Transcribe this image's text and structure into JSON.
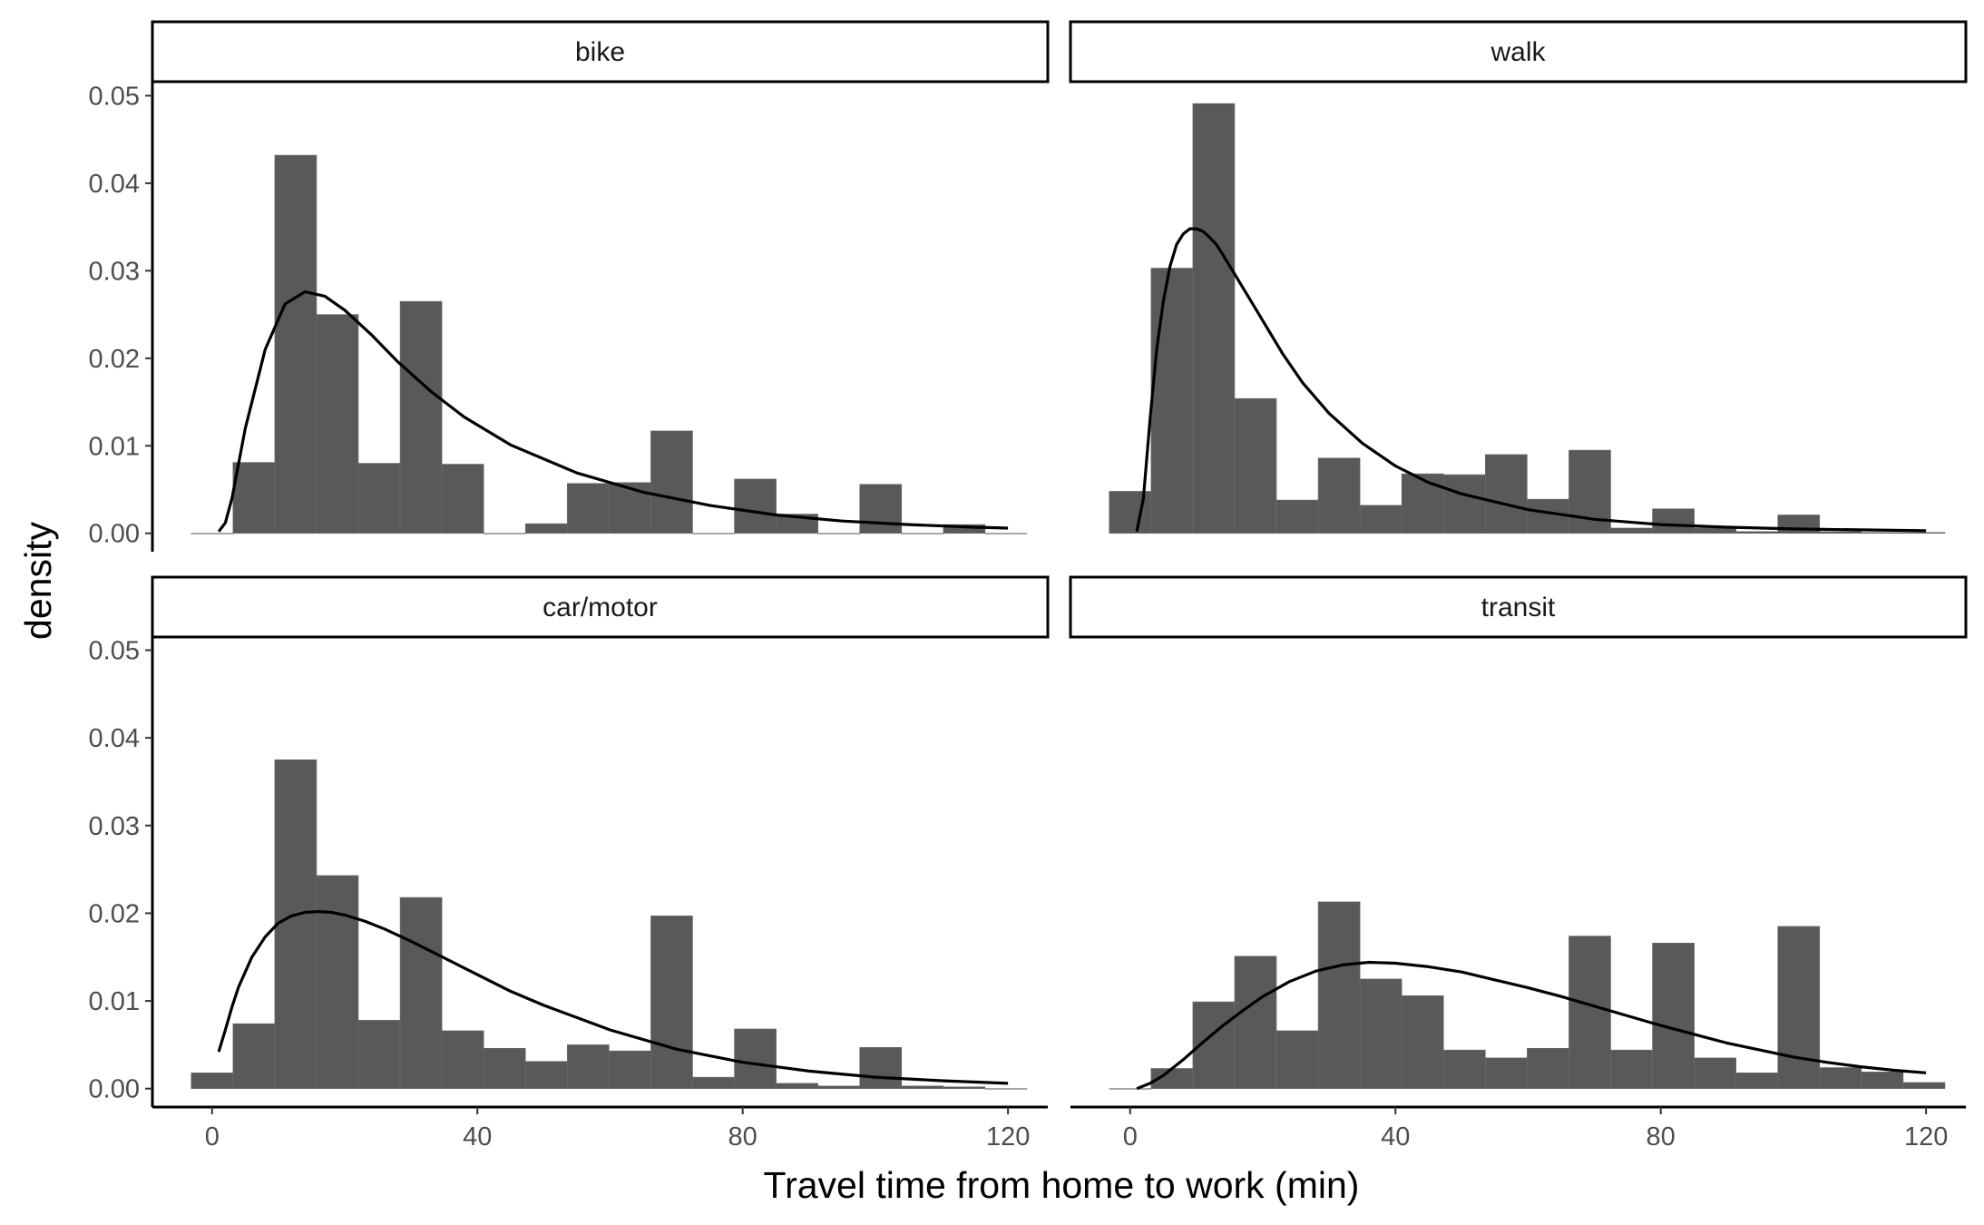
{
  "chart_data": {
    "type": "histogram",
    "xlabel": "Travel time from home to work (min)",
    "ylabel": "density",
    "xlim": [
      -9,
      126
    ],
    "ylim": [
      -0.0021,
      0.0515
    ],
    "x_ticks": [
      0,
      40,
      80,
      120
    ],
    "y_ticks": [
      0,
      0.01,
      0.02,
      0.03,
      0.04,
      0.05
    ],
    "y_tick_labels": [
      "0.00",
      "0.01",
      "0.02",
      "0.03",
      "0.04",
      "0.05"
    ],
    "bin_width": 6.3,
    "bin_starts": [
      -3.15,
      3.15,
      9.45,
      15.75,
      22.05,
      28.35,
      34.65,
      40.95,
      47.25,
      53.55,
      59.85,
      66.15,
      72.45,
      78.75,
      85.05,
      91.35,
      97.65,
      103.95,
      110.25,
      116.55
    ],
    "bar_color": "#595959",
    "curve_color": "#000000",
    "facets": [
      {
        "label": "bike",
        "density": [
          0,
          0.0081,
          0.0432,
          0.025,
          0.008,
          0.0265,
          0.0079,
          0,
          0.0011,
          0.0057,
          0.0058,
          0.0117,
          0,
          0.0062,
          0.0022,
          0,
          0.0056,
          0,
          0.001,
          0
        ],
        "curve": {
          "x": [
            1,
            2,
            3,
            5,
            8,
            11,
            14,
            17,
            20,
            24,
            28,
            33,
            38,
            45,
            55,
            65,
            75,
            85,
            95,
            105,
            115,
            120
          ],
          "y": [
            0.0002,
            0.0012,
            0.004,
            0.012,
            0.021,
            0.0262,
            0.0276,
            0.0271,
            0.0255,
            0.0227,
            0.0196,
            0.0162,
            0.0133,
            0.0101,
            0.0069,
            0.0047,
            0.0032,
            0.0021,
            0.0014,
            0.001,
            0.0007,
            0.0006
          ]
        }
      },
      {
        "label": "walk",
        "density": [
          0.0048,
          0.0303,
          0.0491,
          0.0154,
          0.0038,
          0.0086,
          0.0032,
          0.0068,
          0.0067,
          0.009,
          0.0039,
          0.0095,
          0.0006,
          0.0028,
          0.0006,
          0.0002,
          0.0021,
          0.0002,
          0.0001,
          0.0001
        ],
        "curve": {
          "x": [
            1,
            2,
            3,
            4,
            5,
            6,
            7,
            8,
            9,
            10,
            11,
            12,
            13,
            14,
            16,
            18,
            20,
            23,
            26,
            30,
            35,
            40,
            45,
            50,
            60,
            70,
            80,
            90,
            100,
            110,
            120
          ],
          "y": [
            0.0002,
            0.004,
            0.013,
            0.021,
            0.0265,
            0.0305,
            0.033,
            0.0342,
            0.0348,
            0.0348,
            0.0345,
            0.0338,
            0.033,
            0.0318,
            0.0293,
            0.0268,
            0.0243,
            0.0205,
            0.0172,
            0.0137,
            0.0103,
            0.0077,
            0.0058,
            0.0045,
            0.0027,
            0.0016,
            0.001,
            0.0007,
            0.0005,
            0.0004,
            0.0003
          ]
        }
      },
      {
        "label": "car/motor",
        "density": [
          0.0018,
          0.0074,
          0.0375,
          0.0243,
          0.0078,
          0.0218,
          0.0066,
          0.0046,
          0.0031,
          0.005,
          0.0043,
          0.0197,
          0.0013,
          0.0068,
          0.0006,
          0.0003,
          0.0047,
          0.0003,
          0.0002,
          0
        ],
        "curve": {
          "x": [
            1,
            2,
            3,
            4,
            6,
            8,
            10,
            12,
            14,
            16,
            18,
            20,
            23,
            26,
            30,
            35,
            40,
            45,
            50,
            60,
            70,
            80,
            90,
            100,
            110,
            120
          ],
          "y": [
            0.0042,
            0.0067,
            0.0093,
            0.0116,
            0.015,
            0.0173,
            0.0189,
            0.0197,
            0.0201,
            0.0202,
            0.0201,
            0.0198,
            0.0191,
            0.0182,
            0.0168,
            0.0149,
            0.013,
            0.0111,
            0.0095,
            0.0067,
            0.0045,
            0.003,
            0.002,
            0.0013,
            0.0009,
            0.0006
          ]
        }
      },
      {
        "label": "transit",
        "density": [
          0,
          0.0023,
          0.0099,
          0.0151,
          0.0066,
          0.0213,
          0.0125,
          0.0106,
          0.0044,
          0.0035,
          0.0046,
          0.0174,
          0.0044,
          0.0166,
          0.0035,
          0.0018,
          0.0185,
          0.0024,
          0.0019,
          0.0007
        ],
        "curve": {
          "x": [
            1,
            3,
            5,
            8,
            11,
            14,
            17,
            20,
            24,
            28,
            32,
            36,
            40,
            45,
            50,
            55,
            60,
            65,
            70,
            75,
            80,
            85,
            90,
            95,
            100,
            105,
            110,
            115,
            120
          ],
          "y": [
            0,
            0.0006,
            0.0015,
            0.0033,
            0.0053,
            0.0072,
            0.0089,
            0.0105,
            0.0122,
            0.0134,
            0.0141,
            0.0144,
            0.0143,
            0.0139,
            0.0133,
            0.0124,
            0.0115,
            0.0105,
            0.0094,
            0.0083,
            0.0072,
            0.0062,
            0.0052,
            0.0044,
            0.0036,
            0.003,
            0.0025,
            0.0021,
            0.0018
          ]
        }
      }
    ]
  }
}
